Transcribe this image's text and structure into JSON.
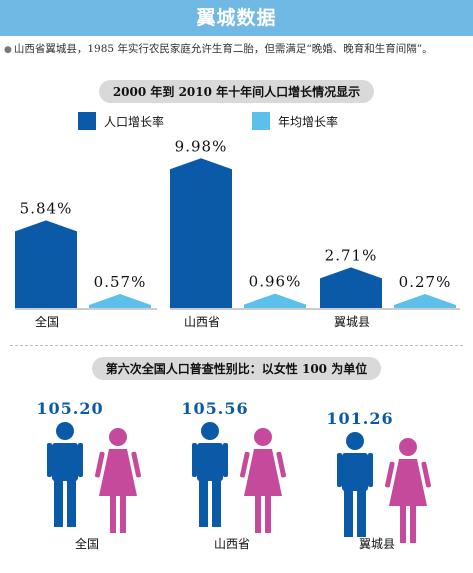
{
  "header": {
    "title": "翼城数据"
  },
  "intro": {
    "text": "山西省翼城县，1985 年实行农民家庭允许生育二胎，但需满足“晚婚、晚育和生育间隔”。"
  },
  "chart_data": [
    {
      "type": "bar",
      "title": "2000 年到 2010 年十年间人口增长情况显示",
      "categories": [
        "全国",
        "山西省",
        "翼城县"
      ],
      "series": [
        {
          "name": "人口增长率",
          "color": "#0b5aa7",
          "values": [
            5.84,
            9.98,
            2.71
          ],
          "labels": [
            "5.84%",
            "9.98%",
            "2.71%"
          ]
        },
        {
          "name": "年均增长率",
          "color": "#5bc0ea",
          "values": [
            0.57,
            0.96,
            0.27
          ],
          "labels": [
            "0.57%",
            "0.96%",
            "0.27%"
          ]
        }
      ],
      "ylim": [
        0,
        10
      ]
    },
    {
      "type": "pictogram",
      "title": "第六次全国人口普查性别比：以女性 100 为单位",
      "categories": [
        "全国",
        "山西省",
        "翼城县"
      ],
      "values": [
        105.2,
        105.56,
        101.26
      ],
      "labels": [
        "105.20",
        "105.56",
        "101.26"
      ],
      "colors": {
        "value": "#0b5aa7",
        "male": "#0b5aa7",
        "female": "#c54a9b"
      }
    }
  ]
}
